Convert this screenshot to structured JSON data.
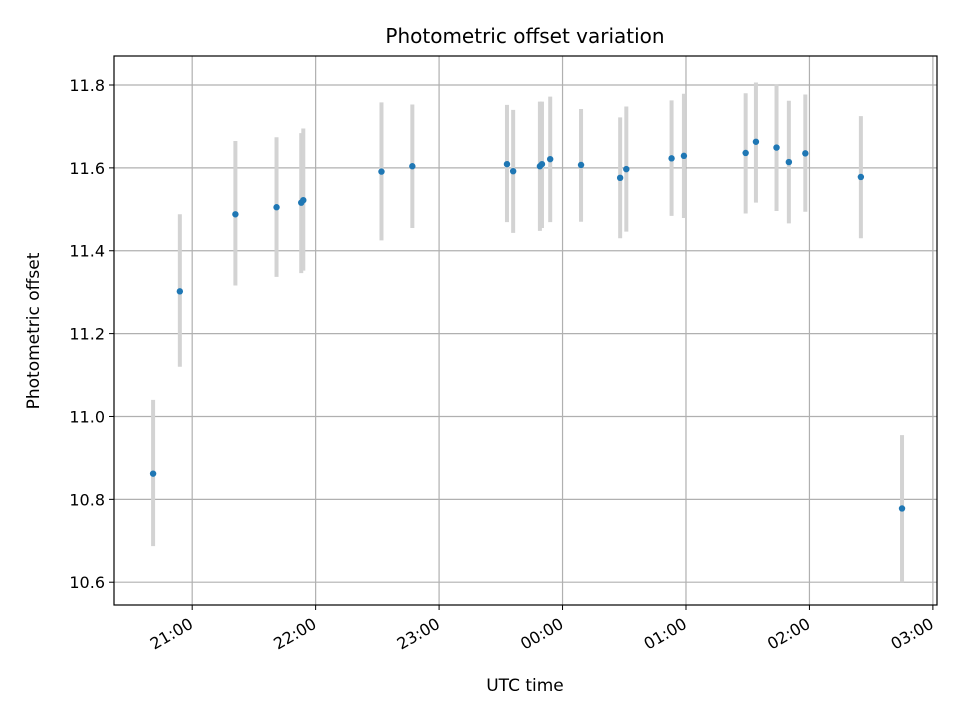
{
  "chart_data": {
    "type": "scatter",
    "title": "Photometric offset variation",
    "xlabel": "UTC time",
    "ylabel": "Photometric offset",
    "x_tick_labels": [
      "21:00",
      "22:00",
      "23:00",
      "00:00",
      "01:00",
      "02:00",
      "03:00"
    ],
    "y_tick_labels": [
      "10.6",
      "10.8",
      "11.0",
      "11.2",
      "11.4",
      "11.6",
      "11.8"
    ],
    "yticks": [
      10.6,
      10.8,
      11.0,
      11.2,
      11.4,
      11.6,
      11.8
    ],
    "ylim": [
      10.545,
      11.87
    ],
    "xlim": [
      "20:22",
      "03:02"
    ],
    "grid": true,
    "colors": {
      "points": "#1f77b4",
      "errorbars": "#d3d3d3",
      "grid": "#b0b0b0"
    },
    "points": [
      {
        "x": "20:41",
        "y": 10.862,
        "lo": 10.687,
        "hi": 11.04
      },
      {
        "x": "20:54",
        "y": 11.302,
        "lo": 11.12,
        "hi": 11.488
      },
      {
        "x": "21:21",
        "y": 11.488,
        "lo": 11.316,
        "hi": 11.665
      },
      {
        "x": "21:41",
        "y": 11.505,
        "lo": 11.337,
        "hi": 11.674
      },
      {
        "x": "21:53",
        "y": 11.516,
        "lo": 11.346,
        "hi": 11.684
      },
      {
        "x": "21:54",
        "y": 11.522,
        "lo": 11.352,
        "hi": 11.695
      },
      {
        "x": "22:32",
        "y": 11.591,
        "lo": 11.425,
        "hi": 11.758
      },
      {
        "x": "22:47",
        "y": 11.604,
        "lo": 11.455,
        "hi": 11.753
      },
      {
        "x": "23:33",
        "y": 11.609,
        "lo": 11.469,
        "hi": 11.752
      },
      {
        "x": "23:36",
        "y": 11.592,
        "lo": 11.443,
        "hi": 11.74
      },
      {
        "x": "23:49",
        "y": 11.604,
        "lo": 11.448,
        "hi": 11.76
      },
      {
        "x": "23:50",
        "y": 11.609,
        "lo": 11.455,
        "hi": 11.76
      },
      {
        "x": "23:54",
        "y": 11.621,
        "lo": 11.469,
        "hi": 11.772
      },
      {
        "x": "00:09",
        "y": 11.607,
        "lo": 11.47,
        "hi": 11.742
      },
      {
        "x": "00:28",
        "y": 11.576,
        "lo": 11.43,
        "hi": 11.722
      },
      {
        "x": "00:31",
        "y": 11.597,
        "lo": 11.446,
        "hi": 11.748
      },
      {
        "x": "00:53",
        "y": 11.623,
        "lo": 11.484,
        "hi": 11.763
      },
      {
        "x": "00:59",
        "y": 11.629,
        "lo": 11.479,
        "hi": 11.779
      },
      {
        "x": "01:29",
        "y": 11.636,
        "lo": 11.49,
        "hi": 11.78
      },
      {
        "x": "01:34",
        "y": 11.663,
        "lo": 11.516,
        "hi": 11.806
      },
      {
        "x": "01:44",
        "y": 11.649,
        "lo": 11.496,
        "hi": 11.802
      },
      {
        "x": "01:50",
        "y": 11.614,
        "lo": 11.466,
        "hi": 11.762
      },
      {
        "x": "01:58",
        "y": 11.635,
        "lo": 11.494,
        "hi": 11.777
      },
      {
        "x": "02:25",
        "y": 11.578,
        "lo": 11.43,
        "hi": 11.725
      },
      {
        "x": "02:45",
        "y": 10.778,
        "lo": 10.6,
        "hi": 10.955
      }
    ]
  }
}
